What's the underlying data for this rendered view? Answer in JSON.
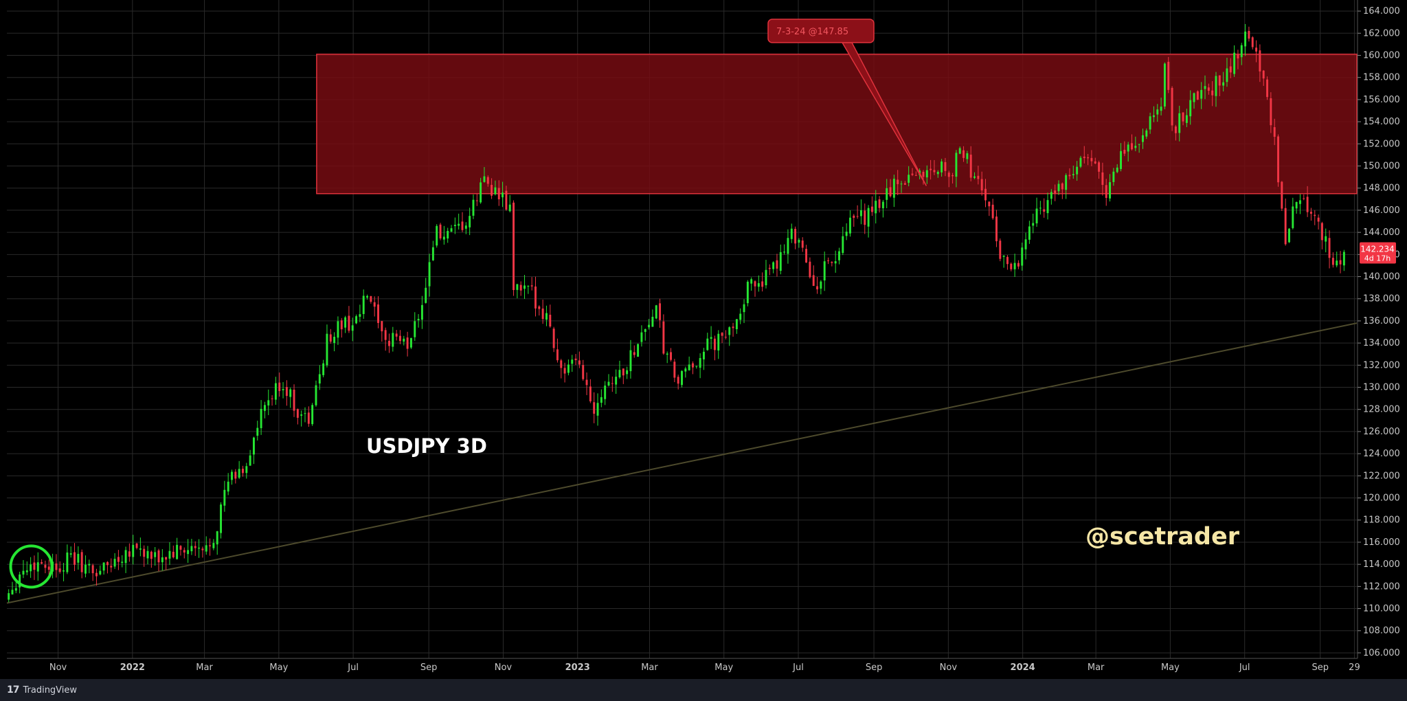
{
  "chart_data": {
    "type": "candlestick",
    "symbol_label": "USDJPY 3D",
    "watermark": "@scetrader",
    "price_axis": {
      "ticks": [
        "164.000",
        "162.000",
        "160.000",
        "158.000",
        "156.000",
        "154.000",
        "152.000",
        "150.000",
        "148.000",
        "146.000",
        "144.000",
        "142.000",
        "140.000",
        "138.000",
        "136.000",
        "134.000",
        "132.000",
        "130.000",
        "128.000",
        "126.000",
        "124.000",
        "122.000",
        "120.000",
        "118.000",
        "116.000",
        "114.000",
        "112.000",
        "110.000",
        "108.000",
        "106.000"
      ],
      "ylim": [
        105.5,
        165.0
      ]
    },
    "time_axis": {
      "ticks": [
        {
          "label": "Nov",
          "date": "2021-11-01"
        },
        {
          "label": "2022",
          "date": "2022-01-01"
        },
        {
          "label": "Mar",
          "date": "2022-03-01"
        },
        {
          "label": "May",
          "date": "2022-05-01"
        },
        {
          "label": "Jul",
          "date": "2022-07-01"
        },
        {
          "label": "Sep",
          "date": "2022-09-01"
        },
        {
          "label": "Nov",
          "date": "2022-11-01"
        },
        {
          "label": "2023",
          "date": "2023-01-01"
        },
        {
          "label": "Mar",
          "date": "2023-03-01"
        },
        {
          "label": "May",
          "date": "2023-05-01"
        },
        {
          "label": "Jul",
          "date": "2023-07-01"
        },
        {
          "label": "Sep",
          "date": "2023-09-01"
        },
        {
          "label": "Nov",
          "date": "2023-11-01"
        },
        {
          "label": "2024",
          "date": "2024-01-01"
        },
        {
          "label": "Mar",
          "date": "2024-03-01"
        },
        {
          "label": "May",
          "date": "2024-05-01"
        },
        {
          "label": "Jul",
          "date": "2024-07-01"
        },
        {
          "label": "Sep",
          "date": "2024-09-01"
        },
        {
          "label": "29",
          "date": "2024-09-29"
        }
      ],
      "xlim": [
        "2021-09-20",
        "2024-10-01"
      ]
    },
    "close_path": [
      [
        "2021-09-20",
        111.0
      ],
      [
        "2021-10-04",
        113.5
      ],
      [
        "2021-10-18",
        114.2
      ],
      [
        "2021-11-01",
        113.8
      ],
      [
        "2021-11-15",
        114.6
      ],
      [
        "2021-12-01",
        113.2
      ],
      [
        "2021-12-15",
        114.0
      ],
      [
        "2022-01-04",
        115.8
      ],
      [
        "2022-01-20",
        114.3
      ],
      [
        "2022-02-05",
        115.0
      ],
      [
        "2022-02-20",
        115.3
      ],
      [
        "2022-03-01",
        115.0
      ],
      [
        "2022-03-10",
        116.5
      ],
      [
        "2022-03-22",
        121.5
      ],
      [
        "2022-04-05",
        122.8
      ],
      [
        "2022-04-20",
        128.0
      ],
      [
        "2022-05-05",
        130.5
      ],
      [
        "2022-05-20",
        127.5
      ],
      [
        "2022-05-28",
        127.0
      ],
      [
        "2022-06-10",
        134.0
      ],
      [
        "2022-06-20",
        135.5
      ],
      [
        "2022-07-05",
        136.0
      ],
      [
        "2022-07-15",
        138.5
      ],
      [
        "2022-07-28",
        133.5
      ],
      [
        "2022-08-05",
        135.0
      ],
      [
        "2022-08-15",
        133.5
      ],
      [
        "2022-08-30",
        138.5
      ],
      [
        "2022-09-07",
        144.0
      ],
      [
        "2022-09-20",
        143.5
      ],
      [
        "2022-10-05",
        145.0
      ],
      [
        "2022-10-18",
        149.0
      ],
      [
        "2022-10-28",
        147.5
      ],
      [
        "2022-11-08",
        146.0
      ],
      [
        "2022-11-11",
        139.0
      ],
      [
        "2022-11-25",
        138.5
      ],
      [
        "2022-12-08",
        136.5
      ],
      [
        "2022-12-20",
        131.5
      ],
      [
        "2023-01-05",
        132.0
      ],
      [
        "2023-01-15",
        128.0
      ],
      [
        "2023-01-25",
        130.5
      ],
      [
        "2023-02-10",
        131.5
      ],
      [
        "2023-02-22",
        134.5
      ],
      [
        "2023-03-08",
        137.0
      ],
      [
        "2023-03-15",
        133.0
      ],
      [
        "2023-03-25",
        130.5
      ],
      [
        "2023-04-05",
        131.5
      ],
      [
        "2023-04-15",
        133.5
      ],
      [
        "2023-04-25",
        134.0
      ],
      [
        "2023-05-05",
        134.5
      ],
      [
        "2023-05-25",
        139.5
      ],
      [
        "2023-06-10",
        140.0
      ],
      [
        "2023-06-25",
        144.0
      ],
      [
        "2023-07-05",
        143.5
      ],
      [
        "2023-07-14",
        138.5
      ],
      [
        "2023-07-25",
        141.0
      ],
      [
        "2023-08-05",
        142.0
      ],
      [
        "2023-08-15",
        145.0
      ],
      [
        "2023-08-30",
        145.5
      ],
      [
        "2023-09-15",
        147.8
      ],
      [
        "2023-09-30",
        149.2
      ],
      [
        "2023-10-15",
        149.5
      ],
      [
        "2023-10-28",
        150.0
      ],
      [
        "2023-11-05",
        149.5
      ],
      [
        "2023-11-14",
        151.5
      ],
      [
        "2023-11-25",
        148.5
      ],
      [
        "2023-12-05",
        147.0
      ],
      [
        "2023-12-14",
        142.0
      ],
      [
        "2023-12-28",
        141.0
      ],
      [
        "2024-01-10",
        145.0
      ],
      [
        "2024-01-25",
        147.5
      ],
      [
        "2024-02-08",
        148.5
      ],
      [
        "2024-02-20",
        150.5
      ],
      [
        "2024-03-05",
        149.8
      ],
      [
        "2024-03-12",
        147.5
      ],
      [
        "2024-03-25",
        151.3
      ],
      [
        "2024-04-10",
        152.5
      ],
      [
        "2024-04-25",
        155.5
      ],
      [
        "2024-04-29",
        159.5
      ],
      [
        "2024-05-05",
        153.0
      ],
      [
        "2024-05-20",
        156.0
      ],
      [
        "2024-06-05",
        157.0
      ],
      [
        "2024-06-20",
        158.5
      ],
      [
        "2024-07-02",
        161.7
      ],
      [
        "2024-07-10",
        161.5
      ],
      [
        "2024-07-15",
        158.5
      ],
      [
        "2024-07-25",
        154.0
      ],
      [
        "2024-08-05",
        143.0
      ],
      [
        "2024-08-15",
        147.5
      ],
      [
        "2024-08-30",
        145.5
      ],
      [
        "2024-09-10",
        142.0
      ],
      [
        "2024-09-15",
        140.5
      ],
      [
        "2024-09-20",
        142.234
      ]
    ],
    "resistance_zone": {
      "from": "2022-06-01",
      "low": 147.5,
      "high": 160.1
    },
    "trendline": [
      [
        "2021-09-20",
        110.5
      ],
      [
        "2024-10-01",
        135.8
      ]
    ],
    "annotation": {
      "text": "7-3-24 @147.85",
      "date": "2023-10-14",
      "price": 148.2
    },
    "last_price": {
      "value": "142.234",
      "countdown": "4d 17h"
    },
    "highlight_circle": {
      "date": "2021-10-10",
      "price": 113.8
    }
  },
  "footer": {
    "brand": "TradingView",
    "logo": "17"
  },
  "colors": {
    "up": "#26e633",
    "down": "#f23645",
    "zone_fill": "#7a0c12",
    "zone_edge": "#e0323c",
    "grid": "#2a2a2a",
    "trend": "#4d4a2c",
    "watermark": "#f5e6a6",
    "circle": "#26e633"
  }
}
